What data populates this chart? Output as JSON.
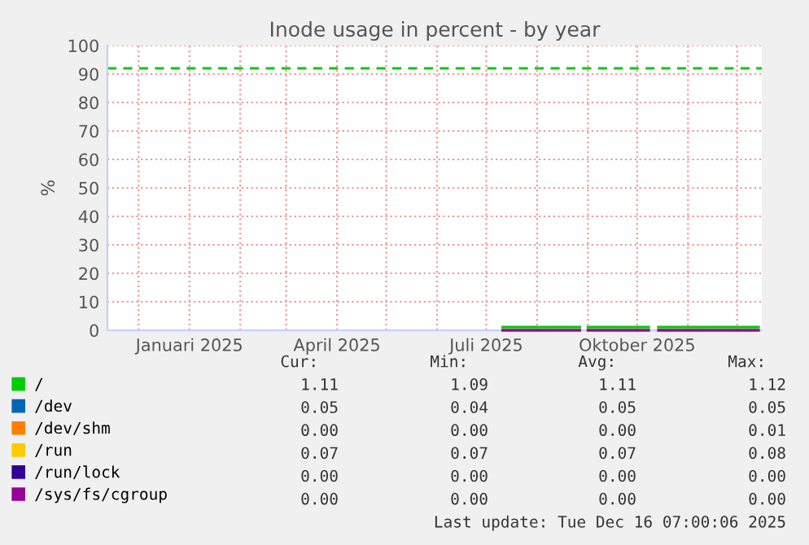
{
  "chart_data": {
    "type": "line",
    "title": "Inode usage in percent - by year",
    "ylabel": "%",
    "x": [
      "2025-07-11",
      "2025-08-27",
      "2025-08-29",
      "2025-09-01",
      "2025-10-08",
      "2025-10-11",
      "2025-10-14",
      "2025-12-14"
    ],
    "series": [
      {
        "name": "/",
        "color": "#00cc00",
        "values": [
          1.1,
          1.1,
          null,
          1.1,
          1.1,
          null,
          1.1,
          1.1
        ]
      },
      {
        "name": "/dev",
        "color": "#0066b3",
        "values": [
          null,
          null,
          null,
          null,
          null,
          null,
          null,
          null
        ]
      },
      {
        "name": "/dev/shm",
        "color": "#ff8000",
        "values": [
          null,
          null,
          null,
          null,
          null,
          null,
          null,
          null
        ]
      },
      {
        "name": "/run",
        "color": "#ffcc00",
        "values": [
          null,
          null,
          null,
          null,
          null,
          null,
          null,
          null
        ]
      },
      {
        "name": "/run/lock",
        "color": "#330099",
        "values": [
          null,
          null,
          null,
          null,
          null,
          null,
          null,
          null
        ]
      },
      {
        "name": "/sys/fs/cgroup",
        "color": "#990099",
        "values": [
          0,
          0,
          null,
          0,
          0,
          null,
          0,
          0
        ]
      }
    ],
    "xlim": [
      "2024-11-12",
      "2025-12-16"
    ],
    "xticks": [
      {
        "value": "2024-12-01",
        "label": null
      },
      {
        "value": "2025-01-01",
        "label": "Januari 2025"
      },
      {
        "value": "2025-02-01",
        "label": null
      },
      {
        "value": "2025-03-01",
        "label": null
      },
      {
        "value": "2025-04-01",
        "label": "April 2025"
      },
      {
        "value": "2025-05-01",
        "label": null
      },
      {
        "value": "2025-06-01",
        "label": null
      },
      {
        "value": "2025-07-01",
        "label": "Juli 2025"
      },
      {
        "value": "2025-08-01",
        "label": null
      },
      {
        "value": "2025-09-01",
        "label": null
      },
      {
        "value": "2025-10-01",
        "label": "Oktober 2025"
      },
      {
        "value": "2025-11-01",
        "label": null
      },
      {
        "value": "2025-12-01",
        "label": null
      }
    ],
    "ylim": [
      0,
      100
    ],
    "yticks": [
      0,
      10,
      20,
      30,
      40,
      50,
      60,
      70,
      80,
      90,
      100
    ],
    "grid": true,
    "legend": "bottom",
    "marker": "none",
    "line_style": "solid",
    "ref_lines": [
      {
        "axis": "y",
        "value": 92,
        "color": "#00cc00",
        "line_style": "dashed"
      }
    ],
    "annotations": [
      "Cur:",
      "Min:",
      "Avg:",
      "Max:",
      "1.11",
      "1.09",
      "1.11",
      "1.12",
      "0.05",
      "0.04",
      "0.05",
      "0.05",
      "0.00",
      "0.00",
      "0.00",
      "0.01",
      "0.07",
      "0.07",
      "0.07",
      "0.08",
      "0.00",
      "0.00",
      "0.00",
      "0.00",
      "0.00",
      "0.00",
      "0.00",
      "0.00",
      "Last update: Tue Dec 16 07:00:06 2025"
    ]
  }
}
